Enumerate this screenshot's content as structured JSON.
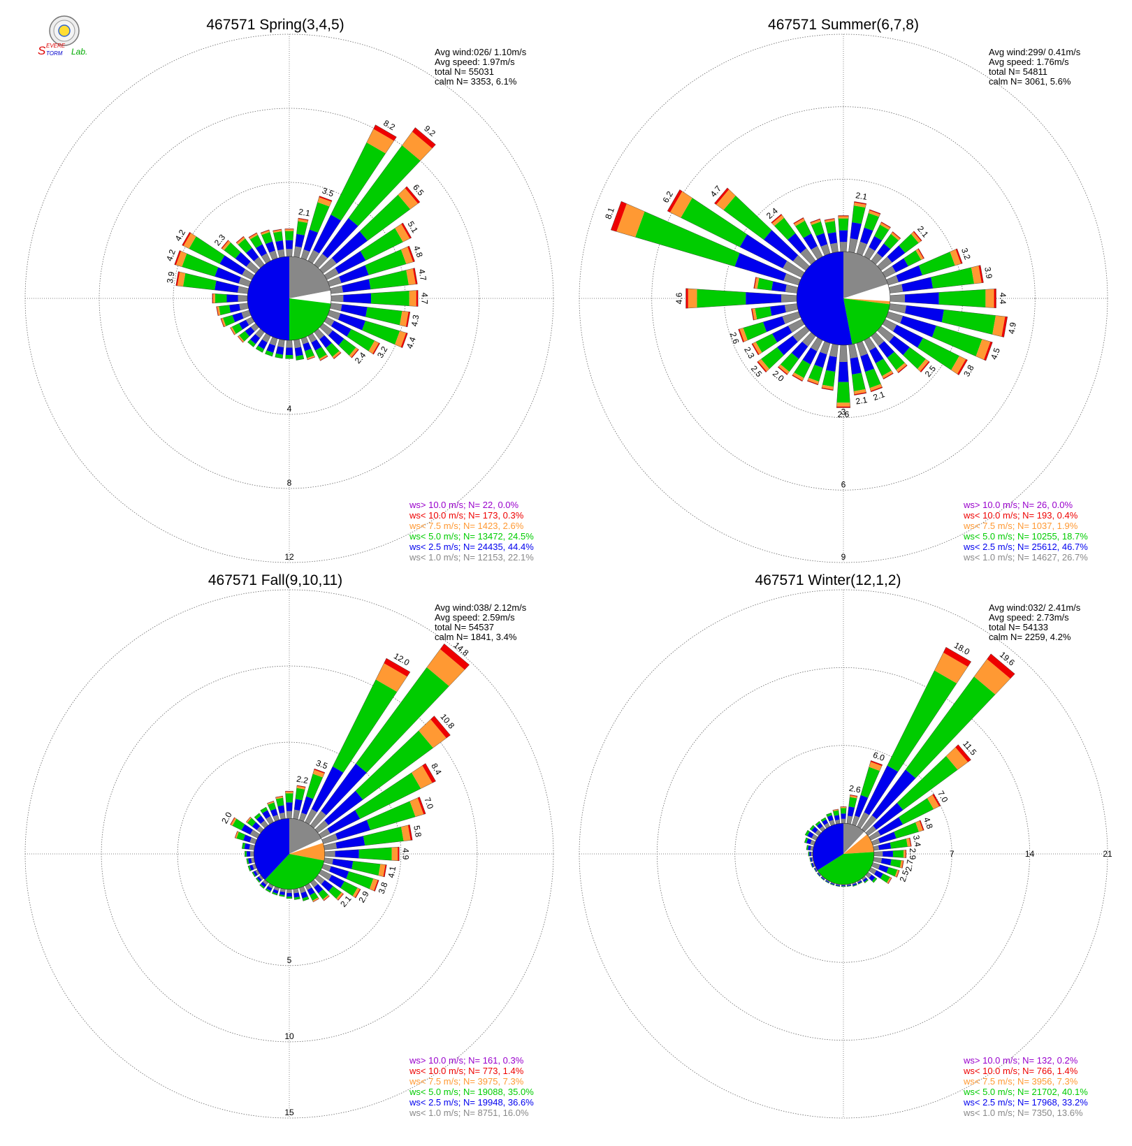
{
  "logo": {
    "text_s": "S",
    "text_evere": "EVERE",
    "text_torm": "TORM",
    "text_lab": "Lab."
  },
  "colors": {
    "calm": "#888888",
    "ws_lt_2_5": "#0000ee",
    "ws_lt_5_0": "#00cc00",
    "ws_lt_7_5": "#ff9933",
    "ws_lt_10_0": "#ee0000",
    "ws_gt_10_0": "#9900cc",
    "ws_lt_1_0": "#888888",
    "axis": "#555555"
  },
  "chart_data": [
    {
      "type": "windrose",
      "title": "467571 Spring(3,4,5)",
      "stats": [
        "Avg wind:026/ 1.10m/s",
        "Avg speed: 1.97m/s",
        "total N=      55031",
        "calm N=   3353,   6.1%"
      ],
      "ring_values": [
        4,
        8,
        12
      ],
      "ring_labels": [
        "4",
        "8",
        "12"
      ],
      "rmax": 12,
      "hub_fraction": 0.26,
      "calm_pie": {
        "gray": 0.22,
        "white": 0.05,
        "orange": 0.0,
        "green": 0.23,
        "blue": 0.5
      },
      "bar_label_threshold": 2.0,
      "sectors": [
        {
          "dir": 0,
          "total": 1.5
        },
        {
          "dir": 10,
          "total": 2.1
        },
        {
          "dir": 20,
          "total": 3.5
        },
        {
          "dir": 30,
          "total": 8.2
        },
        {
          "dir": 40,
          "total": 9.2
        },
        {
          "dir": 50,
          "total": 6.5
        },
        {
          "dir": 60,
          "total": 5.1
        },
        {
          "dir": 70,
          "total": 4.8
        },
        {
          "dir": 80,
          "total": 4.7
        },
        {
          "dir": 90,
          "total": 4.7
        },
        {
          "dir": 100,
          "total": 4.3
        },
        {
          "dir": 110,
          "total": 4.4
        },
        {
          "dir": 120,
          "total": 3.2
        },
        {
          "dir": 130,
          "total": 2.4
        },
        {
          "dir": 140,
          "total": 1.8
        },
        {
          "dir": 150,
          "total": 1.5
        },
        {
          "dir": 160,
          "total": 1.2
        },
        {
          "dir": 170,
          "total": 1.1
        },
        {
          "dir": 180,
          "total": 1.0
        },
        {
          "dir": 190,
          "total": 1.0
        },
        {
          "dir": 200,
          "total": 1.0
        },
        {
          "dir": 210,
          "total": 1.0
        },
        {
          "dir": 220,
          "total": 1.0
        },
        {
          "dir": 230,
          "total": 1.2
        },
        {
          "dir": 240,
          "total": 1.3
        },
        {
          "dir": 250,
          "total": 1.6
        },
        {
          "dir": 260,
          "total": 1.7
        },
        {
          "dir": 270,
          "total": 1.9
        },
        {
          "dir": 280,
          "total": 3.9
        },
        {
          "dir": 290,
          "total": 4.2
        },
        {
          "dir": 300,
          "total": 4.2
        },
        {
          "dir": 310,
          "total": 2.3
        },
        {
          "dir": 320,
          "total": 1.9
        },
        {
          "dir": 330,
          "total": 1.7
        },
        {
          "dir": 340,
          "total": 1.6
        },
        {
          "dir": 350,
          "total": 1.5
        }
      ],
      "legend": [
        {
          "text": "ws> 10.0 m/s; N=    22,  0.0%",
          "color": "#9900cc"
        },
        {
          "text": "ws< 10.0 m/s; N=   173,  0.3%",
          "color": "#ee0000"
        },
        {
          "text": "ws<  7.5 m/s; N=  1423,  2.6%",
          "color": "#ff9933"
        },
        {
          "text": "ws<  5.0 m/s; N= 13472, 24.5%",
          "color": "#00cc00"
        },
        {
          "text": "ws<  2.5 m/s; N= 24435, 44.4%",
          "color": "#0000ee"
        },
        {
          "text": "ws<  1.0 m/s; N= 12153, 22.1%",
          "color": "#888888"
        }
      ]
    },
    {
      "type": "windrose",
      "title": "467571 Summer(6,7,8)",
      "stats": [
        "Avg wind:299/ 0.41m/s",
        "Avg speed: 1.76m/s",
        "total N=      54811",
        "calm N=   3061,   5.6%"
      ],
      "ring_values": [
        3,
        6,
        9
      ],
      "ring_labels": [
        "3",
        "6",
        "9"
      ],
      "rmax": 9,
      "hub_fraction": 0.29,
      "calm_pie": {
        "gray": 0.2,
        "white": 0.06,
        "orange": 0.01,
        "green": 0.2,
        "blue": 0.53
      },
      "bar_label_threshold": 2.0,
      "sectors": [
        {
          "dir": 0,
          "total": 1.5
        },
        {
          "dir": 10,
          "total": 2.1
        },
        {
          "dir": 20,
          "total": 1.9
        },
        {
          "dir": 30,
          "total": 1.6
        },
        {
          "dir": 40,
          "total": 1.5
        },
        {
          "dir": 50,
          "total": 2.1
        },
        {
          "dir": 60,
          "total": 1.8
        },
        {
          "dir": 70,
          "total": 3.2
        },
        {
          "dir": 80,
          "total": 3.9
        },
        {
          "dir": 90,
          "total": 4.4
        },
        {
          "dir": 100,
          "total": 4.9
        },
        {
          "dir": 110,
          "total": 4.5
        },
        {
          "dir": 120,
          "total": 3.8
        },
        {
          "dir": 130,
          "total": 2.5
        },
        {
          "dir": 140,
          "total": 1.9
        },
        {
          "dir": 150,
          "total": 1.8
        },
        {
          "dir": 160,
          "total": 2.1
        },
        {
          "dir": 170,
          "total": 2.1
        },
        {
          "dir": 180,
          "total": 2.6
        },
        {
          "dir": 190,
          "total": 1.9
        },
        {
          "dir": 200,
          "total": 1.8
        },
        {
          "dir": 210,
          "total": 1.9
        },
        {
          "dir": 220,
          "total": 2.0
        },
        {
          "dir": 230,
          "total": 2.5
        },
        {
          "dir": 240,
          "total": 2.3
        },
        {
          "dir": 250,
          "total": 2.6
        },
        {
          "dir": 260,
          "total": 1.9
        },
        {
          "dir": 270,
          "total": 4.6
        },
        {
          "dir": 280,
          "total": 1.8
        },
        {
          "dir": 290,
          "total": 8.1
        },
        {
          "dir": 300,
          "total": 6.2
        },
        {
          "dir": 310,
          "total": 4.7
        },
        {
          "dir": 320,
          "total": 2.4
        },
        {
          "dir": 330,
          "total": 1.8
        },
        {
          "dir": 340,
          "total": 1.5
        },
        {
          "dir": 350,
          "total": 1.4
        }
      ],
      "legend": [
        {
          "text": "ws> 10.0 m/s; N=    26,  0.0%",
          "color": "#9900cc"
        },
        {
          "text": "ws< 10.0 m/s; N=   193,  0.4%",
          "color": "#ee0000"
        },
        {
          "text": "ws<  7.5 m/s; N=  1037,  1.9%",
          "color": "#ff9933"
        },
        {
          "text": "ws<  5.0 m/s; N= 10255, 18.7%",
          "color": "#00cc00"
        },
        {
          "text": "ws<  2.5 m/s; N= 25612, 46.7%",
          "color": "#0000ee"
        },
        {
          "text": "ws<  1.0 m/s; N= 14627, 26.7%",
          "color": "#888888"
        }
      ]
    },
    {
      "type": "windrose",
      "title": "467571 Fall(9,10,11)",
      "stats": [
        "Avg wind:038/ 2.12m/s",
        "Avg speed: 2.59m/s",
        "total N=      54537",
        "calm N=   1841,   3.4%"
      ],
      "ring_values": [
        5,
        10,
        15
      ],
      "ring_labels": [
        "5",
        "10",
        "15"
      ],
      "rmax": 15,
      "hub_fraction": 0.22,
      "calm_pie": {
        "gray": 0.18,
        "white": 0.02,
        "orange": 0.08,
        "green": 0.34,
        "blue": 0.38
      },
      "bar_label_threshold": 2.0,
      "sectors": [
        {
          "dir": 0,
          "total": 1.8
        },
        {
          "dir": 10,
          "total": 2.2
        },
        {
          "dir": 20,
          "total": 3.5
        },
        {
          "dir": 30,
          "total": 12.0
        },
        {
          "dir": 40,
          "total": 14.8
        },
        {
          "dir": 50,
          "total": 10.8
        },
        {
          "dir": 60,
          "total": 8.4
        },
        {
          "dir": 70,
          "total": 7.0
        },
        {
          "dir": 80,
          "total": 5.8
        },
        {
          "dir": 90,
          "total": 4.9
        },
        {
          "dir": 100,
          "total": 4.1
        },
        {
          "dir": 110,
          "total": 3.8
        },
        {
          "dir": 120,
          "total": 2.9
        },
        {
          "dir": 130,
          "total": 2.1
        },
        {
          "dir": 140,
          "total": 1.5
        },
        {
          "dir": 150,
          "total": 1.2
        },
        {
          "dir": 160,
          "total": 0.9
        },
        {
          "dir": 170,
          "total": 0.7
        },
        {
          "dir": 180,
          "total": 0.6
        },
        {
          "dir": 190,
          "total": 0.5
        },
        {
          "dir": 200,
          "total": 0.5
        },
        {
          "dir": 210,
          "total": 0.5
        },
        {
          "dir": 220,
          "total": 0.5
        },
        {
          "dir": 230,
          "total": 0.4
        },
        {
          "dir": 240,
          "total": 0.4
        },
        {
          "dir": 250,
          "total": 0.5
        },
        {
          "dir": 260,
          "total": 0.5
        },
        {
          "dir": 270,
          "total": 0.6
        },
        {
          "dir": 280,
          "total": 0.8
        },
        {
          "dir": 290,
          "total": 1.4
        },
        {
          "dir": 300,
          "total": 2.0
        },
        {
          "dir": 310,
          "total": 1.2
        },
        {
          "dir": 320,
          "total": 1.0
        },
        {
          "dir": 330,
          "total": 1.1
        },
        {
          "dir": 340,
          "total": 1.3
        },
        {
          "dir": 350,
          "total": 1.5
        }
      ],
      "legend": [
        {
          "text": "ws> 10.0 m/s; N=   161,  0.3%",
          "color": "#9900cc"
        },
        {
          "text": "ws< 10.0 m/s; N=   773,  1.4%",
          "color": "#ee0000"
        },
        {
          "text": "ws<  7.5 m/s; N=  3975,  7.3%",
          "color": "#ff9933"
        },
        {
          "text": "ws<  5.0 m/s; N= 19088, 35.0%",
          "color": "#00cc00"
        },
        {
          "text": "ws<  2.5 m/s; N= 19948, 36.6%",
          "color": "#0000ee"
        },
        {
          "text": "ws<  1.0 m/s; N=  8751, 16.0%",
          "color": "#888888"
        }
      ]
    },
    {
      "type": "windrose",
      "title": "467571 Winter(12,1,2)",
      "stats": [
        "Avg wind:032/ 2.41m/s",
        "Avg speed: 2.73m/s",
        "total N=      54133",
        "calm N=   2259,   4.2%"
      ],
      "ring_values": [
        7,
        14,
        21
      ],
      "ring_labels": [
        "7",
        "14",
        "21"
      ],
      "rmax": 21,
      "hub_fraction": 0.19,
      "calm_pie": {
        "gray": 0.12,
        "white": 0.02,
        "orange": 0.1,
        "green": 0.42,
        "blue": 0.34
      },
      "bar_label_threshold": 2.2,
      "sectors": [
        {
          "dir": 0,
          "total": 1.5
        },
        {
          "dir": 10,
          "total": 2.6
        },
        {
          "dir": 20,
          "total": 6.0
        },
        {
          "dir": 30,
          "total": 18.0
        },
        {
          "dir": 40,
          "total": 19.6
        },
        {
          "dir": 50,
          "total": 11.5
        },
        {
          "dir": 60,
          "total": 7.0
        },
        {
          "dir": 70,
          "total": 4.8
        },
        {
          "dir": 80,
          "total": 3.4
        },
        {
          "dir": 90,
          "total": 2.9
        },
        {
          "dir": 100,
          "total": 2.7
        },
        {
          "dir": 110,
          "total": 2.5
        },
        {
          "dir": 120,
          "total": 2.1
        },
        {
          "dir": 130,
          "total": 1.0
        },
        {
          "dir": 140,
          "total": 0.5
        },
        {
          "dir": 150,
          "total": 0.3
        },
        {
          "dir": 160,
          "total": 0.3
        },
        {
          "dir": 170,
          "total": 0.2
        },
        {
          "dir": 180,
          "total": 0.2
        },
        {
          "dir": 190,
          "total": 0.2
        },
        {
          "dir": 200,
          "total": 0.2
        },
        {
          "dir": 210,
          "total": 0.2
        },
        {
          "dir": 220,
          "total": 0.2
        },
        {
          "dir": 230,
          "total": 0.2
        },
        {
          "dir": 240,
          "total": 0.2
        },
        {
          "dir": 250,
          "total": 0.3
        },
        {
          "dir": 260,
          "total": 0.3
        },
        {
          "dir": 270,
          "total": 0.4
        },
        {
          "dir": 280,
          "total": 0.6
        },
        {
          "dir": 290,
          "total": 0.9
        },
        {
          "dir": 300,
          "total": 1.1
        },
        {
          "dir": 310,
          "total": 1.0
        },
        {
          "dir": 320,
          "total": 0.9
        },
        {
          "dir": 330,
          "total": 0.9
        },
        {
          "dir": 340,
          "total": 1.1
        },
        {
          "dir": 350,
          "total": 1.3
        }
      ],
      "legend": [
        {
          "text": "ws> 10.0 m/s; N=   132,  0.2%",
          "color": "#9900cc"
        },
        {
          "text": "ws< 10.0 m/s; N=   766,  1.4%",
          "color": "#ee0000"
        },
        {
          "text": "ws<  7.5 m/s; N=  3956,  7.3%",
          "color": "#ff9933"
        },
        {
          "text": "ws<  5.0 m/s; N= 21702, 40.1%",
          "color": "#00cc00"
        },
        {
          "text": "ws<  2.5 m/s; N= 17968, 33.2%",
          "color": "#0000ee"
        },
        {
          "text": "ws<  1.0 m/s; N=  7350, 13.6%",
          "color": "#888888"
        }
      ]
    }
  ]
}
